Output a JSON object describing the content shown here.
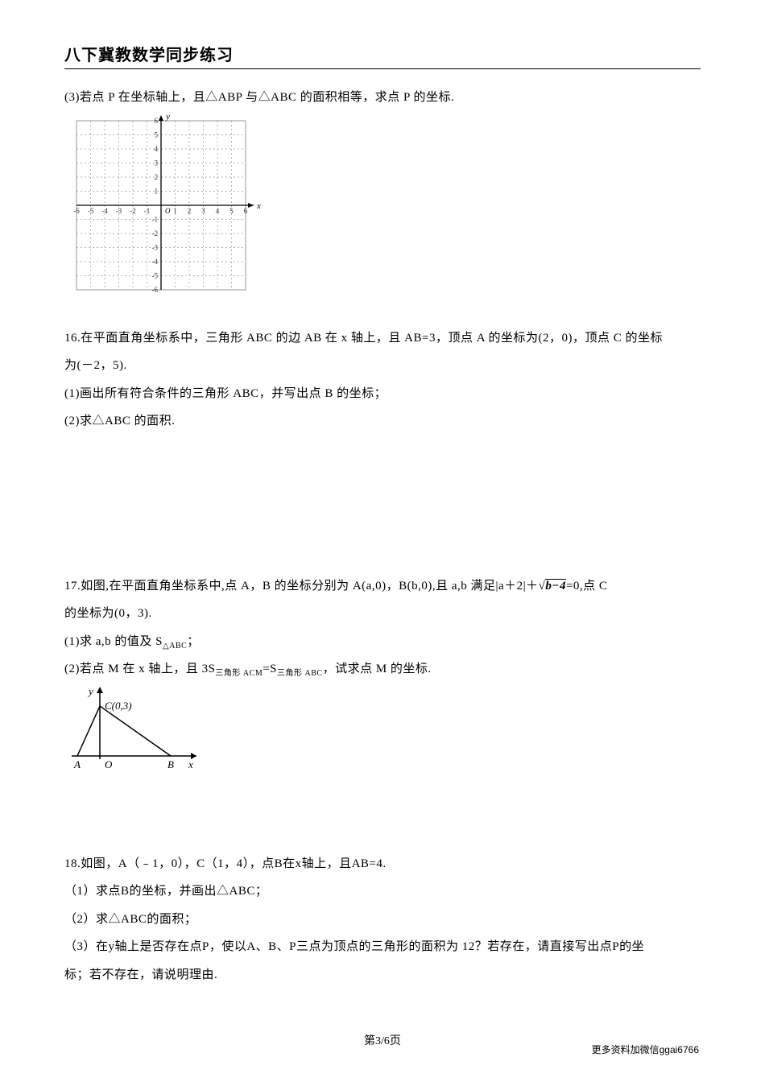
{
  "header": {
    "title": "八下冀教数学同步练习"
  },
  "q15": {
    "part3": "(3)若点 P 在坐标轴上，且△ABP 与△ABC 的面积相等，求点 P 的坐标.",
    "grid": {
      "xmin": -6,
      "xmax": 6,
      "ymin": -6,
      "ymax": 6,
      "grid_color": "#9a9a9a",
      "axis_color": "#000000",
      "dash": "2,3",
      "tick_font_size": 9,
      "x_label": "x",
      "y_label": "y"
    }
  },
  "q16": {
    "stem": "16.在平面直角坐标系中，三角形 ABC 的边 AB 在 x 轴上，且 AB=3，顶点 A 的坐标为(2，0)，顶点 C 的坐标",
    "stem2": "为(－2，5).",
    "part1": "(1)画出所有符合条件的三角形 ABC，并写出点 B 的坐标；",
    "part2": "(2)求△ABC 的面积."
  },
  "q17": {
    "stem_a": "17.如图,在平面直角坐标系中,点 A，B 的坐标分别为 A(a,0)，B(b,0),且 a,b 满足|a＋2|＋",
    "stem_sqrt": "b−4",
    "stem_b": "=0,点 C",
    "stem_c": "的坐标为(0，3).",
    "part1_a": "(1)求 a,b 的值及 S",
    "part1_sub": "△ABC",
    "part1_b": "；",
    "part2_a": "(2)若点 M 在 x 轴上，且 3S",
    "part2_sub1": "三角形 ACM",
    "part2_mid": "=S",
    "part2_sub2": "三角形 ABC",
    "part2_b": "，试求点 M 的坐标.",
    "figure": {
      "C_label": "C(0,3)",
      "A_label": "A",
      "O_label": "O",
      "B_label": "B",
      "x_label": "x",
      "y_label": "y",
      "axis_color": "#000000"
    }
  },
  "q18": {
    "stem": "18.如图，A（﹣1，0），C（1，4），点B在x轴上，且AB=4.",
    "part1": "（1）求点B的坐标，并画出△ABC；",
    "part2": "（2）求△ABC的面积；",
    "part3a": "（3）在y轴上是否存在点P，使以A、B、P三点为顶点的三角形的面积为 12？若存在，请直接写出点P的坐",
    "part3b": "标；若不存在，请说明理由."
  },
  "footer": {
    "page": "第3/6页",
    "right": "更多资料加微信ggai6766"
  }
}
